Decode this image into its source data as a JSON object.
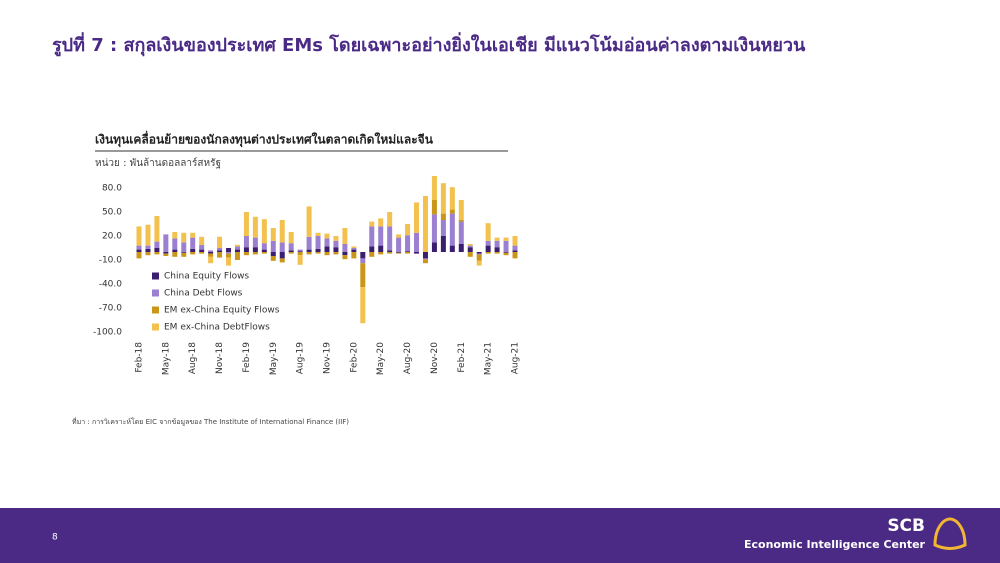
{
  "title": "รูปที่ 7 : สกุลเงินของประเทศ EMs โดยเฉพาะอย่างยิ่งในเอเชีย มีแนวโน้มอ่อนค่าลงตามเงินหยวน",
  "source": "ที่มา : การวิเคราะห์โดย EIC จากข้อมูลของ The Institute of International Finance (IIF)",
  "footer": {
    "page": "8",
    "brand": "SCB",
    "center": "Economic Intelligence Center"
  },
  "chart_data": {
    "type": "stacked_bar",
    "title": "เงินทุนเคลื่อนย้ายของนักลงทุนต่างประเทศในตลาดเกิดใหม่และจีน",
    "subtitle": "หน่วย : พันล้านดอลลาร์สหรัฐ",
    "categories": [
      "Feb-18",
      null,
      null,
      "May-18",
      null,
      null,
      "Aug-18",
      null,
      null,
      "Nov-18",
      null,
      null,
      "Feb-19",
      null,
      null,
      "May-19",
      null,
      null,
      "Aug-19",
      null,
      null,
      "Nov-19",
      null,
      null,
      "Feb-20",
      null,
      null,
      "May-20",
      null,
      null,
      "Aug-20",
      null,
      null,
      "Nov-20",
      null,
      null,
      "Feb-21",
      null,
      null,
      "May-21",
      null,
      null,
      "Aug-21"
    ],
    "series": [
      {
        "name": "China Equity Flows",
        "color": "#3b1f6e",
        "values": [
          3,
          4,
          5,
          -2,
          3,
          -1,
          4,
          3,
          -2,
          2,
          5,
          3,
          6,
          6,
          3,
          -5,
          -8,
          2,
          1,
          3,
          4,
          7,
          6,
          -4,
          3,
          -8,
          7,
          8,
          2,
          -1,
          1,
          -2,
          -8,
          12,
          20,
          8,
          10,
          6,
          -2,
          8,
          6,
          -1,
          2
        ]
      },
      {
        "name": "China Debt Flows",
        "color": "#9b7fd0",
        "values": [
          5,
          4,
          8,
          22,
          14,
          12,
          14,
          6,
          2,
          3,
          -2,
          4,
          14,
          12,
          8,
          14,
          12,
          9,
          2,
          16,
          16,
          10,
          8,
          10,
          2,
          -6,
          25,
          24,
          30,
          18,
          20,
          24,
          -1,
          35,
          20,
          40,
          28,
          2,
          -1,
          6,
          8,
          14,
          6
        ]
      },
      {
        "name": "EM ex-China Equity Flows",
        "color": "#c9961a",
        "values": [
          -8,
          -4,
          -3,
          -3,
          -6,
          -5,
          -3,
          -2,
          -4,
          -7,
          -5,
          -10,
          -4,
          -3,
          -2,
          -6,
          -5,
          -2,
          -4,
          -3,
          -2,
          -4,
          -3,
          -5,
          -8,
          -30,
          -6,
          -3,
          -2,
          -1,
          -2,
          0,
          -5,
          18,
          8,
          5,
          2,
          -6,
          -8,
          -2,
          -2,
          -3,
          -8
        ]
      },
      {
        "name": "EM ex-China DebtFlows",
        "color": "#f2c14e",
        "values": [
          24,
          26,
          32,
          0,
          8,
          12,
          6,
          10,
          -8,
          14,
          -10,
          2,
          30,
          26,
          30,
          16,
          28,
          14,
          -12,
          38,
          4,
          6,
          6,
          20,
          2,
          -45,
          6,
          10,
          18,
          4,
          14,
          38,
          70,
          30,
          38,
          28,
          25,
          2,
          -6,
          22,
          4,
          4,
          12
        ]
      }
    ],
    "ylim": [
      -100,
      80
    ],
    "yticks": [
      {
        "value": 80,
        "label": "80.0"
      },
      {
        "value": 50,
        "label": "50.0"
      },
      {
        "value": 20,
        "label": "20.0"
      },
      {
        "value": -10,
        "label": "-10.0"
      },
      {
        "value": -40,
        "label": "-40.0"
      },
      {
        "value": -70,
        "label": "-70.0"
      },
      {
        "value": -100,
        "label": "-100.0"
      }
    ],
    "legend": "lower-left"
  }
}
